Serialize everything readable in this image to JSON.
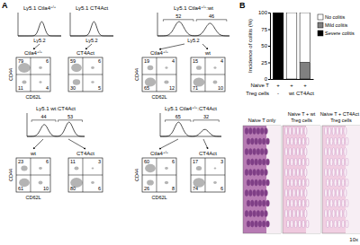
{
  "panel_labels": [
    "A",
    "B"
  ],
  "flow": {
    "y_label": "CD44",
    "x_label": "CD62L",
    "hist_axis": "Ly5.2",
    "histograms": [
      {
        "title": "Ly5.1 Ctla4+/+"
      },
      {
        "title": "Ly5.1 CT4Act"
      },
      {
        "title": "Ly5.1 Ctla4+/+:wt",
        "gates": [
          52,
          46
        ]
      },
      {
        "title": "Ly5.1 wt:CT4Act",
        "gates": [
          44,
          53
        ]
      },
      {
        "title": "Ly5.1 Ctla4+/+:CT4Act",
        "gates": [
          65,
          32
        ]
      }
    ],
    "dot_plots": [
      {
        "label": "Ctla4+/+",
        "quadrants": [
          79,
          6,
          11,
          4
        ]
      },
      {
        "label": "CT4Act",
        "quadrants": [
          59,
          6,
          30,
          5
        ]
      },
      {
        "label": "Ctla4+/+",
        "quadrants": [
          19,
          4,
          65,
          12
        ]
      },
      {
        "label": "wt",
        "quadrants": [
          15,
          4,
          71,
          10
        ]
      },
      {
        "label": "wt",
        "quadrants": [
          23,
          6,
          61,
          10
        ]
      },
      {
        "label": "CT4Act",
        "quadrants": [
          11,
          3,
          80,
          6
        ]
      },
      {
        "label": "Ctla4+/+",
        "quadrants": [
          60,
          6,
          26,
          8
        ]
      },
      {
        "label": "CT4Act",
        "quadrants": [
          17,
          3,
          74,
          6
        ]
      }
    ]
  },
  "chart_data": {
    "type": "bar",
    "stacked": true,
    "y_label": "Incidence of colitis (%)",
    "categories": [
      null,
      null,
      null
    ],
    "series": [
      {
        "name": "Severe colitis",
        "color": "#000000",
        "values": [
          100,
          0,
          0
        ]
      },
      {
        "name": "Mild colitis",
        "color": "#808080",
        "values": [
          0,
          0,
          25
        ]
      },
      {
        "name": "No colitis",
        "color": "#ffffff",
        "values": [
          0,
          100,
          75
        ]
      }
    ],
    "ylim": [
      0,
      100
    ],
    "yticks": [
      0,
      25,
      50,
      75,
      100
    ],
    "legend": "right",
    "x_table": {
      "rows": [
        {
          "label": "Naive T",
          "cells": [
            "+",
            "+",
            "+"
          ]
        },
        {
          "label": "Treg cells",
          "cells": [
            "-",
            "wt",
            "CT4Act"
          ]
        }
      ]
    }
  },
  "histology": {
    "panels": [
      {
        "label": [
          "Naive T only"
        ]
      },
      {
        "label": [
          "Naive T + wt",
          "Treg cells"
        ]
      },
      {
        "label": [
          "Naive T + CT4Act",
          "Treg cells"
        ]
      }
    ],
    "magnification": "10x"
  }
}
